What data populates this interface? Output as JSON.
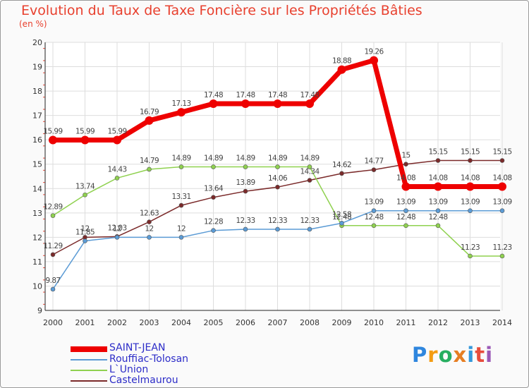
{
  "chart_data": {
    "type": "line",
    "title": "Evolution du Taux de Taxe Foncière sur les Propriétés Bâties",
    "ylabel": "(en %)",
    "xlabel": "",
    "x": [
      "2000",
      "2001",
      "2002",
      "2003",
      "2004",
      "2005",
      "2006",
      "2007",
      "2008",
      "2009",
      "2010",
      "2011",
      "2012",
      "2013",
      "2014"
    ],
    "ylim": [
      9,
      20
    ],
    "yticks": [
      9,
      10,
      11,
      12,
      13,
      14,
      15,
      16,
      17,
      18,
      19,
      20
    ],
    "grid": true,
    "series": [
      {
        "name": "SAINT-JEAN",
        "color": "#ee0000",
        "values": [
          15.99,
          15.99,
          15.99,
          16.79,
          17.13,
          17.48,
          17.48,
          17.48,
          17.48,
          18.88,
          19.26,
          14.08,
          14.08,
          14.08,
          14.08
        ],
        "labels": [
          "15.99",
          "15.99",
          "15.99",
          "16.79",
          "17.13",
          "17.48",
          "17.48",
          "17.48",
          "17.48",
          "18.88",
          "19.26",
          "14.08",
          "14.08",
          "14.08",
          "14.08"
        ]
      },
      {
        "name": "Rouffiac-Tolosan",
        "color": "#5b9bd5",
        "values": [
          9.87,
          11.85,
          12,
          12,
          12,
          12.28,
          12.33,
          12.33,
          12.33,
          12.58,
          13.09,
          13.09,
          13.09,
          13.09,
          13.09
        ],
        "labels": [
          "9.87",
          "11.85",
          "12",
          "12",
          "12",
          "12.28",
          "12.33",
          "12.33",
          "12.33",
          "12.58",
          "13.09",
          "13.09",
          "13.09",
          "13.09",
          "13.09"
        ]
      },
      {
        "name": "L`Union",
        "color": "#8fd14f",
        "values": [
          12.89,
          13.74,
          14.43,
          14.79,
          14.89,
          14.89,
          14.89,
          14.89,
          14.89,
          12.48,
          12.48,
          12.48,
          12.48,
          11.23,
          11.23
        ],
        "labels": [
          "12.89",
          "13.74",
          "14.43",
          "14.79",
          "14.89",
          "14.89",
          "14.89",
          "14.89",
          "14.89",
          "12.48",
          "12.48",
          "12.48",
          "12.48",
          "11.23",
          "11.23"
        ]
      },
      {
        "name": "Castelmaurou",
        "color": "#7b2a2a",
        "values": [
          11.29,
          12,
          12.03,
          12.63,
          13.31,
          13.64,
          13.89,
          14.06,
          14.34,
          14.62,
          14.77,
          15,
          15.15,
          15.15,
          15.15
        ],
        "labels": [
          "11.29",
          "12",
          "12.03",
          "12.63",
          "13.31",
          "13.64",
          "13.89",
          "14.06",
          "14.34",
          "14.62",
          "14.77",
          "15",
          "15.15",
          "15.15",
          "15.15"
        ]
      }
    ]
  },
  "legend": {
    "items": [
      {
        "name": "SAINT-JEAN",
        "color": "#ee0000"
      },
      {
        "name": "Rouffiac-Tolosan",
        "color": "#5b9bd5"
      },
      {
        "name": "L`Union",
        "color": "#8fd14f"
      },
      {
        "name": "Castelmaurou",
        "color": "#7b2a2a"
      }
    ]
  },
  "logo": {
    "letters": [
      "P",
      "r",
      "o",
      "x",
      "i",
      "t",
      "i"
    ],
    "colors": [
      "#2e86de",
      "#f39c12",
      "#27ae60",
      "#e67e22",
      "#3498db",
      "#e74c3c",
      "#9b59b6"
    ]
  }
}
